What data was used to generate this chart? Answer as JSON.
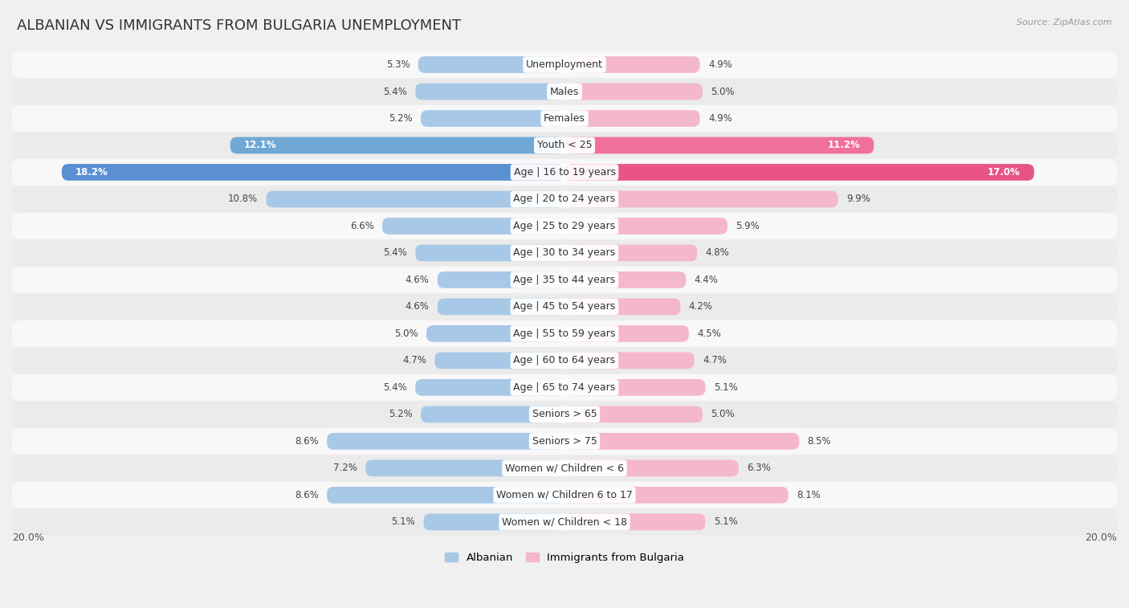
{
  "title": "ALBANIAN VS IMMIGRANTS FROM BULGARIA UNEMPLOYMENT",
  "source": "Source: ZipAtlas.com",
  "categories": [
    "Unemployment",
    "Males",
    "Females",
    "Youth < 25",
    "Age | 16 to 19 years",
    "Age | 20 to 24 years",
    "Age | 25 to 29 years",
    "Age | 30 to 34 years",
    "Age | 35 to 44 years",
    "Age | 45 to 54 years",
    "Age | 55 to 59 years",
    "Age | 60 to 64 years",
    "Age | 65 to 74 years",
    "Seniors > 65",
    "Seniors > 75",
    "Women w/ Children < 6",
    "Women w/ Children 6 to 17",
    "Women w/ Children < 18"
  ],
  "albanian": [
    5.3,
    5.4,
    5.2,
    12.1,
    18.2,
    10.8,
    6.6,
    5.4,
    4.6,
    4.6,
    5.0,
    4.7,
    5.4,
    5.2,
    8.6,
    7.2,
    8.6,
    5.1
  ],
  "bulgaria": [
    4.9,
    5.0,
    4.9,
    11.2,
    17.0,
    9.9,
    5.9,
    4.8,
    4.4,
    4.2,
    4.5,
    4.7,
    5.1,
    5.0,
    8.5,
    6.3,
    8.1,
    5.1
  ],
  "albanian_color_normal": "#a8c8e8",
  "bulgaria_color_normal": "#f5b8cb",
  "albanian_color_highlight": "#6fa8d4",
  "bulgaria_color_highlight": "#f07099",
  "albanian_color_strong": "#5b8fd4",
  "bulgaria_color_strong": "#e85585",
  "highlight_rows": [
    3,
    4
  ],
  "axis_max": 20.0,
  "bg_color": "#f0f0f0",
  "row_bg_even": "#f8f8f8",
  "row_bg_odd": "#ebebeb",
  "label_fontsize": 9,
  "title_fontsize": 13,
  "value_fontsize": 8.5,
  "legend_labels": [
    "Albanian",
    "Immigrants from Bulgaria"
  ],
  "legend_colors": [
    "#a8c8e8",
    "#f5b8cb"
  ]
}
